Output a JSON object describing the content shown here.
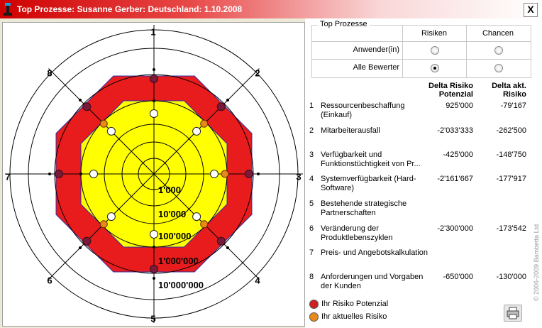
{
  "window": {
    "title": "Top Prozesse: Susanne Gerber: Deutschland: 1.10.2008",
    "close_label": "X"
  },
  "filter": {
    "group_label": "Top Prozesse",
    "columns": [
      "Risiken",
      "Chancen"
    ],
    "rows": [
      {
        "label": "Anwender(in)",
        "risiken_checked": false,
        "chancen_checked": false
      },
      {
        "label": "Alle Bewerter",
        "risiken_checked": true,
        "chancen_checked": false
      }
    ]
  },
  "table": {
    "col1_title": "Delta Risiko Potenzial",
    "col2_title": "Delta akt. Risiko",
    "items": [
      {
        "num": "1",
        "name": "Ressourcenbeschaffung (Einkauf)",
        "v1": "925'000",
        "v2": "-79'167"
      },
      {
        "num": "2",
        "name": "Mitarbeiterausfall",
        "v1": "-2'033'333",
        "v2": "-262'500"
      },
      {
        "num": "3",
        "name": "Verfügbarkeit und Funktionstüchtigkeit von Pr...",
        "v1": "-425'000",
        "v2": "-148'750"
      },
      {
        "num": "4",
        "name": "Systemverfügbarkeit (Hard- Software)",
        "v1": "-2'161'667",
        "v2": "-177'917"
      },
      {
        "num": "5",
        "name": "Bestehende strategische Partnerschaften",
        "v1": "",
        "v2": ""
      },
      {
        "num": "6",
        "name": "Veränderung der Produktlebenszyklen",
        "v1": "-2'300'000",
        "v2": "-173'542"
      },
      {
        "num": "7",
        "name": "Preis- und Angebotskalkulation",
        "v1": "",
        "v2": ""
      },
      {
        "num": "8",
        "name": "Anforderungen und Vorgaben der Kunden",
        "v1": "-650'000",
        "v2": "-130'000"
      }
    ]
  },
  "legend": [
    {
      "label": "Ihr Risiko Potenzial",
      "color": "#cc2222"
    },
    {
      "label": "Ihr aktuelles Risiko",
      "color": "#e88a1a"
    }
  ],
  "copyright": "© 2006-2009 Bambetta Ltd",
  "chart_data": {
    "type": "radar",
    "axes": [
      "1",
      "2",
      "3",
      "4",
      "5",
      "6",
      "7",
      "8"
    ],
    "ring_labels": [
      "1'000",
      "10'000",
      "100'000",
      "1'000'000",
      "10'000'000"
    ],
    "scale": "log",
    "series": [
      {
        "name": "Ihr Risiko Potenzial",
        "values": [
          5000000,
          5000000,
          5000000,
          5000000,
          5000000,
          5000000,
          5000000,
          5000000
        ]
      },
      {
        "name": "Ihr aktuelles Risiko",
        "values": [
          300000,
          300000,
          300000,
          300000,
          300000,
          300000,
          300000,
          300000
        ]
      }
    ],
    "colors": {
      "outer_band": "#e81c1c",
      "inner_band": "#ffff00",
      "potenzial_marker": "#7a1a3a",
      "aktuell_marker": "#e8891e",
      "open_marker": "#ffffff"
    }
  }
}
